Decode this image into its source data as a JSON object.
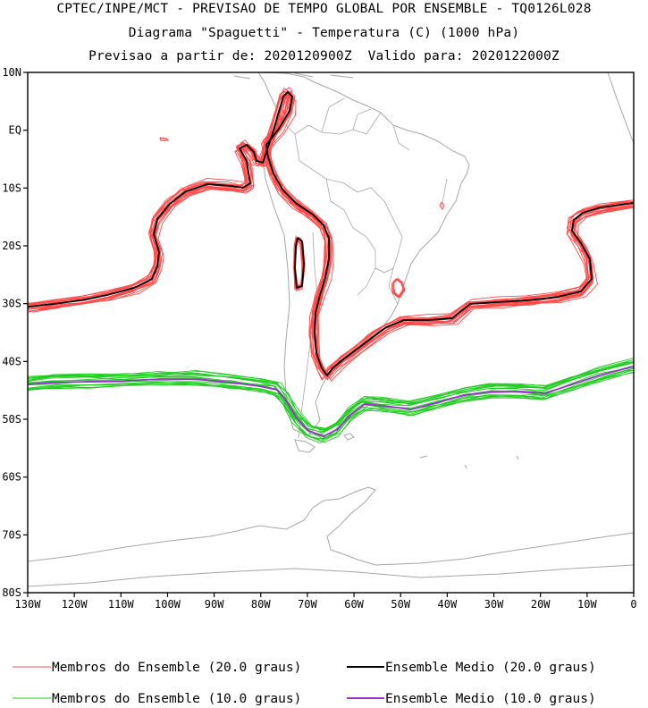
{
  "header": {
    "line1": "CPTEC/INPE/MCT - PREVISAO DE TEMPO GLOBAL POR ENSEMBLE - TQ0126L028",
    "line2": "Diagrama \"Spaguetti\" - Temperatura (C) (1000 hPa)",
    "line3": "Previsao a partir de: 2020120900Z  Valido para: 2020122000Z"
  },
  "map": {
    "lat_labels": [
      "10N",
      "EQ",
      "10S",
      "20S",
      "30S",
      "40S",
      "50S",
      "60S",
      "70S",
      "80S"
    ],
    "lon_labels": [
      "130W",
      "120W",
      "110W",
      "100W",
      "90W",
      "80W",
      "70W",
      "60W",
      "50W",
      "40W",
      "30W",
      "20W",
      "10W",
      "0"
    ],
    "lat_range": [
      10,
      -80
    ],
    "lon_range": [
      -130,
      0
    ]
  },
  "colors": {
    "member_20": "#ff4a4a",
    "mean_20": "#000000",
    "member_10": "#22cc22",
    "mean_10": "#9933cc",
    "coast": "#a6a6a6"
  },
  "legend": {
    "member_20": "Membros do Ensemble (20.0 graus)",
    "mean_20": "Ensemble Medio (20.0 graus)",
    "member_10": "Membros do Ensemble (10.0 graus)",
    "mean_10": "Ensemble Medio (10.0 graus)"
  }
}
